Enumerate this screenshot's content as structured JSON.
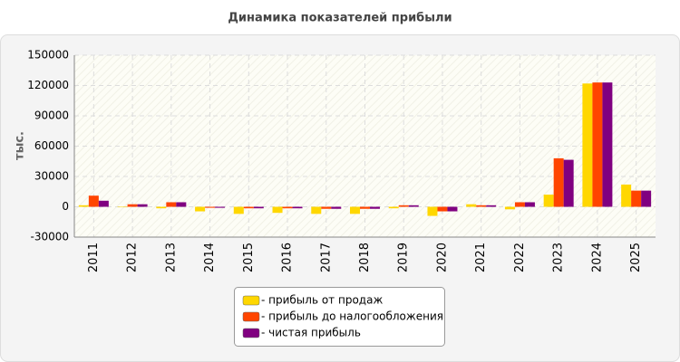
{
  "chart_data": {
    "type": "bar",
    "title": "Динамика показателей прибыли",
    "y_label": "тыс.",
    "categories": [
      "2011",
      "2012",
      "2013",
      "2014",
      "2015",
      "2016",
      "2017",
      "2018",
      "2019",
      "2020",
      "2021",
      "2022",
      "2023",
      "2024",
      "2025"
    ],
    "series": [
      {
        "name": "- прибыль от продаж",
        "color": "#ffd700",
        "values": [
          1500,
          -500,
          -1500,
          -4500,
          -7000,
          -6000,
          -7000,
          -7000,
          -1500,
          -9000,
          2500,
          -2500,
          12000,
          122000,
          22000
        ]
      },
      {
        "name": "- прибыль до налогообложения",
        "color": "#ff4500",
        "values": [
          11000,
          2500,
          4500,
          -1000,
          -1500,
          -1500,
          -2000,
          -2000,
          1500,
          -4500,
          1500,
          4500,
          48000,
          123000,
          16000
        ]
      },
      {
        "name": "- чистая прибыль",
        "color": "#800080",
        "values": [
          6000,
          2500,
          4500,
          -1000,
          -1500,
          -1500,
          -2000,
          -2000,
          1500,
          -4500,
          1500,
          4500,
          46500,
          123000,
          16000
        ]
      }
    ],
    "ylim": [
      -30000,
      150000
    ],
    "yticks": [
      -30000,
      0,
      30000,
      60000,
      90000,
      120000,
      150000
    ],
    "grid": true
  }
}
